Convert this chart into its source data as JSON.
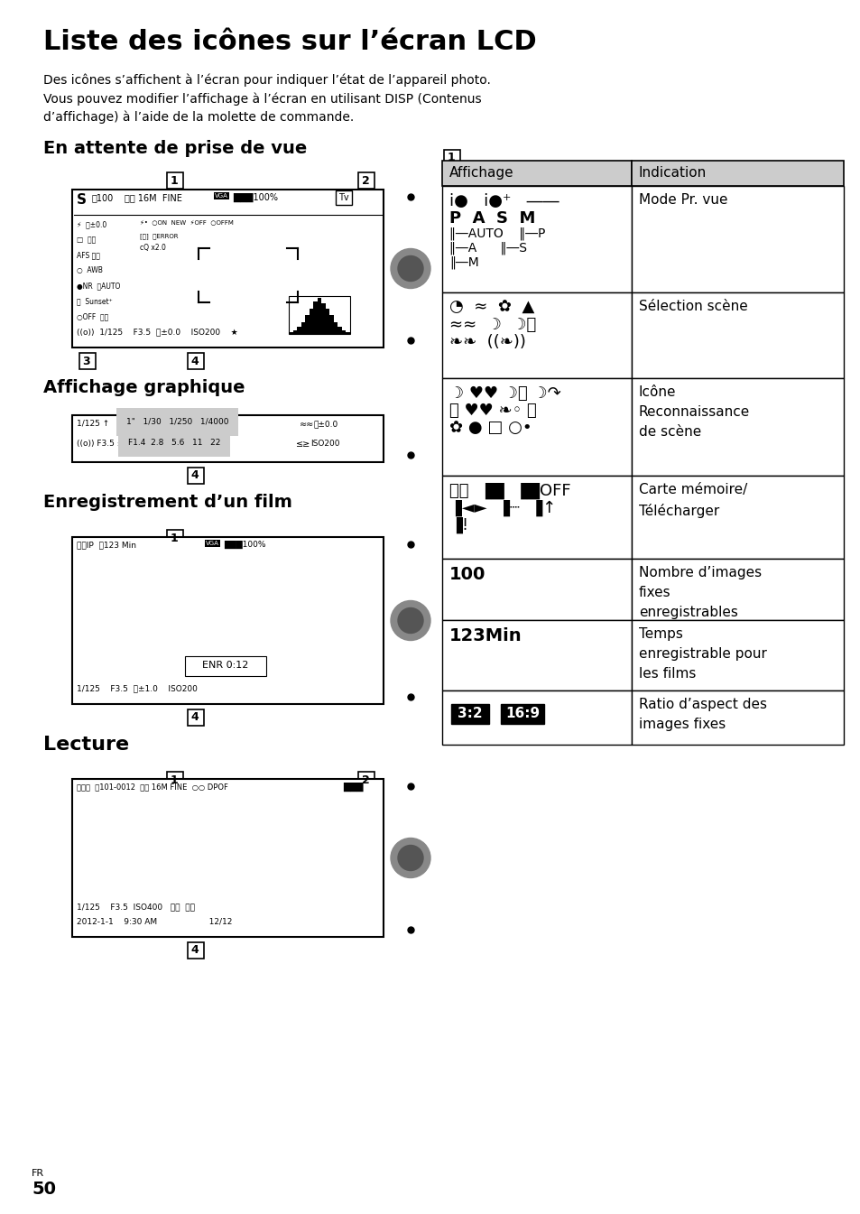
{
  "title": "Liste des icônes sur l’écran LCD",
  "intro_text": "Des icônes s’affichent à l’écran pour indiquer l’état de l’appareil photo.\nVous pouvez modifier l’affichage à l’écran en utilisant DISP (Contenus\nd’affichage) à l’aide de la molette de commande.",
  "section1": "En attente de prise de vue",
  "section2": "Affichage graphique",
  "section3": "Enregistrement d’un film",
  "section4": "Lecture",
  "page_num": "50",
  "page_label": "FR",
  "table_header_col1": "Affichage",
  "table_header_col2": "Indication",
  "bg_color": "#ffffff",
  "text_color": "#000000",
  "header_bg": "#cccccc",
  "border_color": "#000000"
}
